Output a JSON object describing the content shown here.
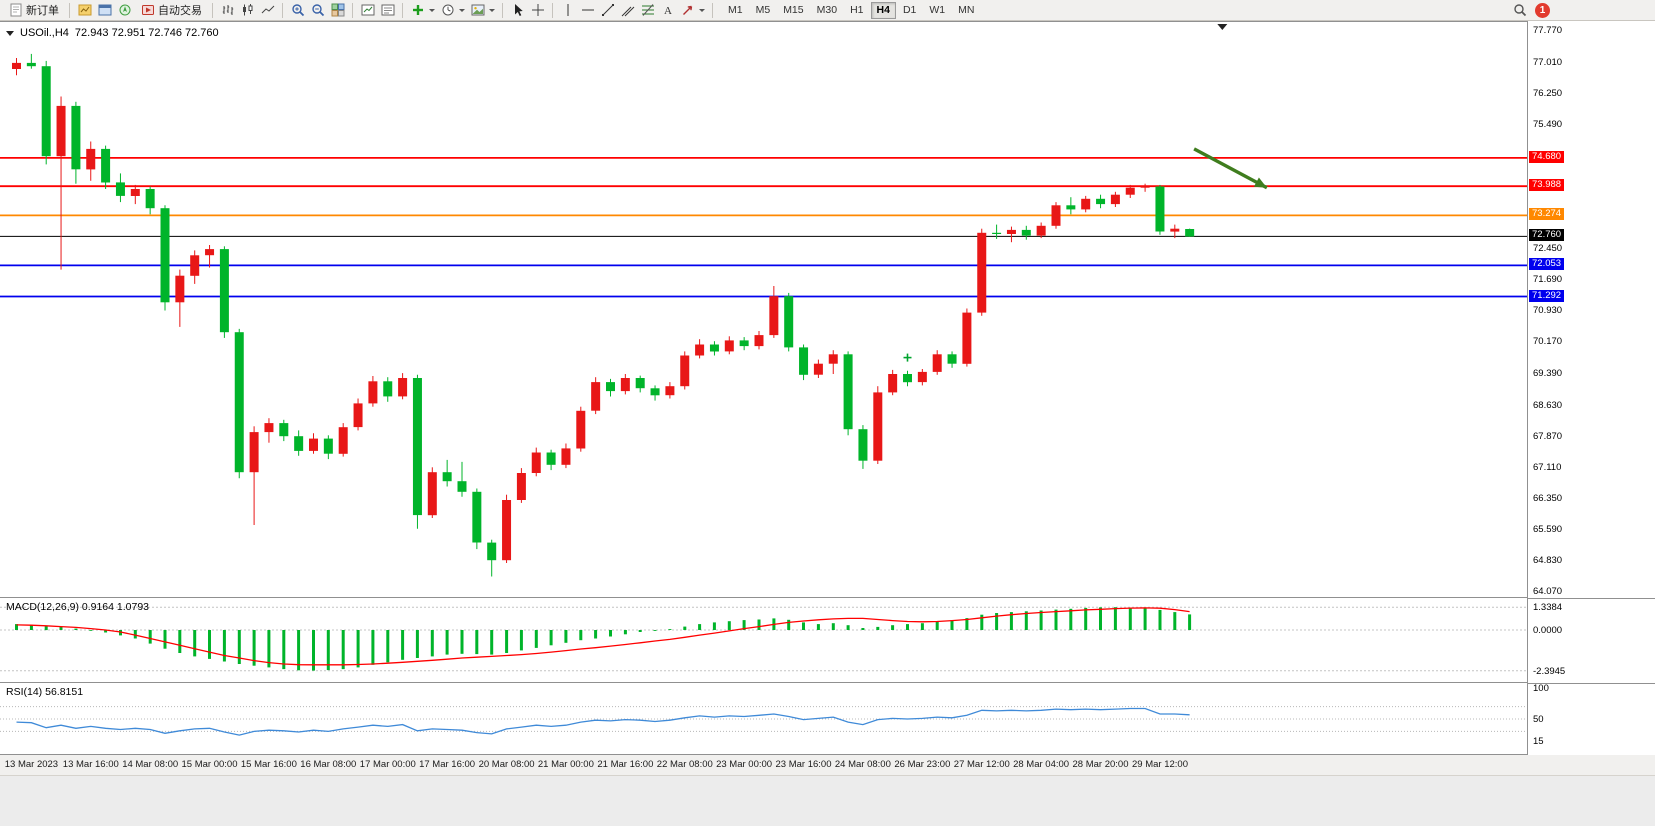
{
  "toolbar": {
    "new_order": "新订单",
    "auto_trading": "自动交易",
    "timeframes": [
      "M1",
      "M5",
      "M15",
      "M30",
      "H1",
      "H4",
      "D1",
      "W1",
      "MN"
    ],
    "active_timeframe": "H4",
    "notification_count": "1",
    "icons": [
      "new-order-icon",
      "charts-icon",
      "market-watch-icon",
      "navigator-icon",
      "auto-trading-icon",
      "bar-chart-icon",
      "candlestick-chart-icon",
      "line-chart-icon",
      "zoom-in-icon",
      "zoom-out-icon",
      "tile-windows-icon",
      "chart-window-icon",
      "chart-list-icon",
      "add-indicator-icon",
      "period-clock-icon",
      "template-icon",
      "cursor-icon",
      "crosshair-icon",
      "vertical-line-icon",
      "horizontal-line-icon",
      "trendline-icon",
      "channel-icon",
      "fibonacci-icon",
      "text-icon",
      "arrows-icon",
      "search-icon"
    ]
  },
  "chart": {
    "title": "USOil.,H4",
    "ohlc": "72.943 72.951 72.746 72.760"
  },
  "chart_data": {
    "type": "candlestick",
    "symbol": "USOil.",
    "timeframe": "H4",
    "current_bar": {
      "open": 72.943,
      "high": 72.951,
      "low": 72.746,
      "close": 72.76
    },
    "price_axis_range": [
      63.95,
      78.0
    ],
    "up_color": "#e81717",
    "down_color": "#00b42a",
    "price_axis_labels": [
      "77.770",
      "77.010",
      "76.250",
      "75.490",
      "72.450",
      "71.690",
      "70.930",
      "70.170",
      "69.390",
      "68.630",
      "67.870",
      "67.110",
      "66.350",
      "65.590",
      "64.830",
      "64.070"
    ],
    "hlines": [
      {
        "price": 74.68,
        "label": "74.680",
        "color": "#ff0000"
      },
      {
        "price": 73.988,
        "label": "73.988",
        "color": "#ff0000"
      },
      {
        "price": 73.274,
        "label": "73.274",
        "color": "#ff8800"
      },
      {
        "price": 72.76,
        "label": "72.760",
        "color": "#000000"
      },
      {
        "price": 72.053,
        "label": "72.053",
        "color": "#0000ee"
      },
      {
        "price": 71.292,
        "label": "71.292",
        "color": "#0000ee"
      }
    ],
    "x_labels": [
      "13 Mar 2023",
      "13 Mar 16:00",
      "14 Mar 08:00",
      "15 Mar 00:00",
      "15 Mar 16:00",
      "16 Mar 08:00",
      "17 Mar 00:00",
      "17 Mar 16:00",
      "20 Mar 08:00",
      "21 Mar 00:00",
      "21 Mar 16:00",
      "22 Mar 08:00",
      "23 Mar 00:00",
      "23 Mar 16:00",
      "24 Mar 08:00",
      "26 Mar 23:00",
      "27 Mar 12:00",
      "28 Mar 04:00",
      "28 Mar 20:00",
      "29 Mar 12:00"
    ],
    "x_label_candle_index": [
      1,
      5,
      9,
      13,
      17,
      21,
      25,
      29,
      33,
      37,
      41,
      45,
      49,
      53,
      57,
      61,
      65,
      69,
      73,
      77
    ],
    "candles": [
      [
        76.85,
        77.12,
        76.7,
        77.0
      ],
      [
        77.0,
        77.22,
        76.86,
        76.92
      ],
      [
        76.92,
        77.05,
        74.52,
        74.72
      ],
      [
        74.72,
        76.18,
        71.95,
        75.95
      ],
      [
        75.95,
        76.05,
        74.05,
        74.4
      ],
      [
        74.4,
        75.08,
        74.12,
        74.9
      ],
      [
        74.9,
        74.98,
        73.92,
        74.08
      ],
      [
        74.08,
        74.3,
        73.6,
        73.75
      ],
      [
        73.75,
        74.02,
        73.55,
        73.92
      ],
      [
        73.92,
        73.98,
        73.3,
        73.45
      ],
      [
        73.45,
        73.52,
        70.95,
        71.15
      ],
      [
        71.15,
        71.95,
        70.55,
        71.8
      ],
      [
        71.8,
        72.42,
        71.6,
        72.3
      ],
      [
        72.3,
        72.55,
        72.0,
        72.45
      ],
      [
        72.45,
        72.52,
        70.28,
        70.42
      ],
      [
        70.42,
        70.5,
        66.85,
        67.0
      ],
      [
        67.0,
        68.12,
        65.71,
        67.98
      ],
      [
        67.98,
        68.32,
        67.72,
        68.2
      ],
      [
        68.2,
        68.28,
        67.76,
        67.88
      ],
      [
        67.88,
        68.02,
        67.4,
        67.52
      ],
      [
        67.52,
        67.95,
        67.45,
        67.82
      ],
      [
        67.82,
        67.9,
        67.32,
        67.45
      ],
      [
        67.45,
        68.2,
        67.38,
        68.1
      ],
      [
        68.1,
        68.8,
        68.02,
        68.68
      ],
      [
        68.68,
        69.35,
        68.6,
        69.22
      ],
      [
        69.22,
        69.32,
        68.72,
        68.85
      ],
      [
        68.85,
        69.42,
        68.78,
        69.3
      ],
      [
        69.3,
        69.38,
        65.62,
        65.95
      ],
      [
        65.95,
        67.12,
        65.88,
        67.0
      ],
      [
        67.0,
        67.3,
        66.65,
        66.78
      ],
      [
        66.78,
        67.25,
        66.4,
        66.52
      ],
      [
        66.52,
        66.6,
        65.12,
        65.28
      ],
      [
        65.28,
        65.35,
        64.45,
        64.85
      ],
      [
        64.85,
        66.45,
        64.78,
        66.32
      ],
      [
        66.32,
        67.1,
        66.25,
        66.98
      ],
      [
        66.98,
        67.6,
        66.9,
        67.48
      ],
      [
        67.48,
        67.55,
        67.05,
        67.18
      ],
      [
        67.18,
        67.7,
        67.1,
        67.58
      ],
      [
        67.58,
        68.6,
        67.5,
        68.5
      ],
      [
        68.5,
        69.32,
        68.42,
        69.2
      ],
      [
        69.2,
        69.28,
        68.85,
        68.98
      ],
      [
        68.98,
        69.4,
        68.9,
        69.3
      ],
      [
        69.3,
        69.36,
        68.95,
        69.05
      ],
      [
        69.05,
        69.12,
        68.75,
        68.88
      ],
      [
        68.88,
        69.2,
        68.8,
        69.1
      ],
      [
        69.1,
        69.95,
        69.02,
        69.85
      ],
      [
        69.85,
        70.25,
        69.78,
        70.12
      ],
      [
        70.12,
        70.2,
        69.85,
        69.95
      ],
      [
        69.95,
        70.32,
        69.88,
        70.22
      ],
      [
        70.22,
        70.3,
        69.98,
        70.08
      ],
      [
        70.08,
        70.45,
        70.0,
        70.35
      ],
      [
        70.35,
        71.55,
        70.28,
        71.3
      ],
      [
        71.3,
        71.38,
        69.95,
        70.05
      ],
      [
        70.05,
        70.12,
        69.25,
        69.38
      ],
      [
        69.38,
        69.75,
        69.3,
        69.65
      ],
      [
        69.65,
        69.98,
        69.4,
        69.88
      ],
      [
        69.88,
        69.95,
        67.9,
        68.05
      ],
      [
        68.05,
        68.15,
        67.08,
        67.28
      ],
      [
        67.28,
        69.1,
        67.2,
        68.95
      ],
      [
        68.95,
        69.5,
        68.88,
        69.4
      ],
      [
        69.4,
        69.48,
        69.1,
        69.2
      ],
      [
        69.2,
        69.52,
        69.12,
        69.45
      ],
      [
        69.45,
        69.98,
        69.38,
        69.88
      ],
      [
        69.88,
        69.95,
        69.55,
        69.65
      ],
      [
        69.65,
        71.0,
        69.58,
        70.9
      ],
      [
        70.9,
        72.95,
        70.82,
        72.85
      ],
      [
        72.85,
        73.05,
        72.7,
        72.82
      ],
      [
        72.82,
        73.0,
        72.62,
        72.92
      ],
      [
        72.92,
        73.02,
        72.68,
        72.78
      ],
      [
        72.78,
        73.1,
        72.72,
        73.02
      ],
      [
        73.02,
        73.6,
        72.95,
        73.52
      ],
      [
        73.52,
        73.72,
        73.3,
        73.42
      ],
      [
        73.42,
        73.75,
        73.35,
        73.68
      ],
      [
        73.68,
        73.78,
        73.45,
        73.55
      ],
      [
        73.55,
        73.85,
        73.48,
        73.78
      ],
      [
        73.78,
        74.02,
        73.7,
        73.95
      ],
      [
        73.95,
        74.05,
        73.85,
        73.98
      ],
      [
        73.98,
        74.02,
        72.8,
        72.88
      ],
      [
        72.88,
        73.05,
        72.72,
        72.95
      ],
      [
        72.943,
        72.951,
        72.746,
        72.76
      ]
    ],
    "annotations": {
      "arrow": {
        "from_index": 79.3,
        "from_price": 74.9,
        "to_index": 84.2,
        "to_price": 73.95,
        "color": "#3f7d1e"
      },
      "plus_marker": {
        "index": 60,
        "price": 69.8,
        "color": "#00a32e"
      },
      "scroll_marker_index": 81.2
    },
    "macd": {
      "label": "MACD(12,26,9)",
      "values_label": "0.9164 1.0793",
      "scale_labels": [
        "1.3384",
        "0.0000",
        "-2.3945"
      ],
      "histogram_color": "#00b42a",
      "signal_color": "#ff0000",
      "histogram": [
        0.35,
        0.3,
        0.25,
        0.18,
        0.08,
        -0.02,
        -0.15,
        -0.32,
        -0.5,
        -0.8,
        -1.1,
        -1.35,
        -1.55,
        -1.7,
        -1.85,
        -2.0,
        -2.1,
        -2.2,
        -2.3,
        -2.37,
        -2.39,
        -2.36,
        -2.3,
        -2.2,
        -2.05,
        -1.9,
        -1.75,
        -1.65,
        -1.55,
        -1.45,
        -1.4,
        -1.42,
        -1.45,
        -1.35,
        -1.2,
        -1.05,
        -0.9,
        -0.75,
        -0.6,
        -0.5,
        -0.38,
        -0.25,
        -0.12,
        -0.05,
        0.05,
        0.2,
        0.35,
        0.45,
        0.52,
        0.58,
        0.62,
        0.68,
        0.6,
        0.45,
        0.35,
        0.4,
        0.28,
        0.12,
        0.18,
        0.28,
        0.35,
        0.4,
        0.5,
        0.55,
        0.7,
        0.9,
        1.0,
        1.05,
        1.1,
        1.15,
        1.2,
        1.25,
        1.3,
        1.33,
        1.34,
        1.32,
        1.28,
        1.18,
        1.05,
        0.92
      ],
      "signal": [
        0.3,
        0.28,
        0.25,
        0.2,
        0.15,
        0.08,
        0.0,
        -0.12,
        -0.3,
        -0.5,
        -0.7,
        -0.9,
        -1.1,
        -1.3,
        -1.5,
        -1.65,
        -1.8,
        -1.92,
        -2.0,
        -2.04,
        -2.05,
        -2.05,
        -2.05,
        -2.03,
        -2.0,
        -1.95,
        -1.9,
        -1.84,
        -1.78,
        -1.72,
        -1.65,
        -1.6,
        -1.55,
        -1.5,
        -1.45,
        -1.38,
        -1.3,
        -1.21,
        -1.12,
        -1.04,
        -0.95,
        -0.85,
        -0.75,
        -0.65,
        -0.55,
        -0.43,
        -0.3,
        -0.18,
        -0.05,
        0.08,
        0.2,
        0.33,
        0.45,
        0.53,
        0.6,
        0.65,
        0.68,
        0.68,
        0.62,
        0.55,
        0.5,
        0.48,
        0.5,
        0.55,
        0.62,
        0.72,
        0.82,
        0.9,
        0.97,
        1.03,
        1.08,
        1.13,
        1.18,
        1.22,
        1.26,
        1.29,
        1.3,
        1.28,
        1.2,
        1.08
      ]
    },
    "rsi": {
      "label": "RSI(14)",
      "value_label": "56.8151",
      "scale_labels": [
        "100",
        "50",
        "15"
      ],
      "line_color": "#3f8ad8",
      "values": [
        45,
        44,
        36,
        40,
        35,
        38,
        35,
        33,
        35,
        33,
        27,
        31,
        34,
        35,
        29,
        24,
        30,
        32,
        31,
        29,
        32,
        30,
        34,
        37,
        40,
        38,
        41,
        31,
        34,
        33,
        32,
        28,
        26,
        34,
        37,
        40,
        38,
        40,
        45,
        48,
        47,
        49,
        48,
        46,
        48,
        52,
        55,
        53,
        55,
        54,
        56,
        58,
        54,
        49,
        51,
        53,
        45,
        41,
        49,
        51,
        50,
        51,
        53,
        52,
        56,
        64,
        63,
        64,
        63,
        64,
        66,
        65,
        66,
        65,
        66,
        67,
        67,
        58,
        58,
        56.8
      ]
    }
  }
}
